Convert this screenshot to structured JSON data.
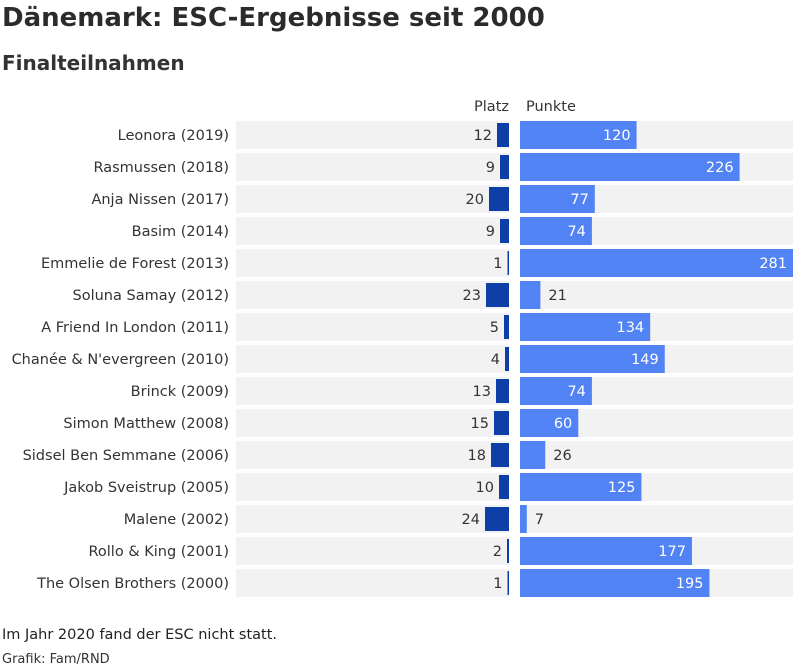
{
  "title": "Dänemark: ESC-Ergebnisse seit 2000",
  "subtitle": "Finalteilnahmen",
  "note": "Im Jahr 2020 fand der ESC nicht statt.",
  "credit": "Grafik: Fam/RND",
  "colors": {
    "platz_bar": "#0d3fa6",
    "punkte_bar": "#5283f5",
    "row_background": "#f2f2f2",
    "label_text": "#333333",
    "value_text_inside": "#ffffff",
    "value_text_outside": "#333333"
  },
  "chart_data": {
    "type": "bar",
    "orientation": "horizontal",
    "categories": [
      "Leonora (2019)",
      "Rasmussen (2018)",
      "Anja Nissen (2017)",
      "Basim (2014)",
      "Emmelie de Forest (2013)",
      "Soluna Samay (2012)",
      "A Friend In London (2011)",
      "Chanée & N'evergreen (2010)",
      "Brinck (2009)",
      "Simon Matthew (2008)",
      "Sidsel Ben Semmane (2006)",
      "Jakob Sveistrup (2005)",
      "Malene (2002)",
      "Rollo & King (2001)",
      "The Olsen Brothers (2000)"
    ],
    "series": [
      {
        "name": "Platz",
        "values": [
          12,
          9,
          20,
          9,
          1,
          23,
          5,
          4,
          13,
          15,
          18,
          10,
          24,
          2,
          1
        ],
        "xlim": [
          0,
          100
        ],
        "direction": "leftward"
      },
      {
        "name": "Punkte",
        "values": [
          120,
          226,
          77,
          74,
          281,
          21,
          134,
          149,
          74,
          60,
          26,
          125,
          7,
          177,
          195
        ],
        "xlim": [
          0,
          281
        ],
        "direction": "rightward"
      }
    ],
    "legend": "column headers above bars",
    "grid": false
  }
}
